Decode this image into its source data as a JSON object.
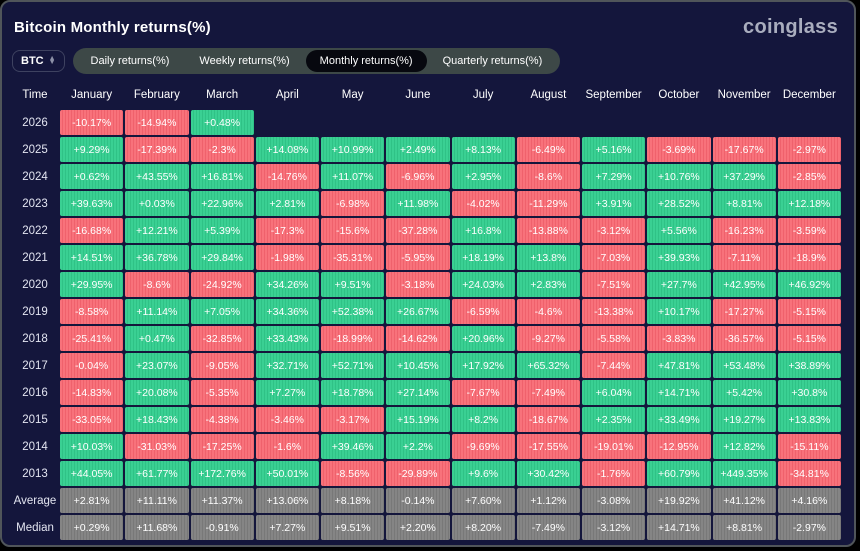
{
  "header": {
    "title": "Bitcoin Monthly returns(%)",
    "brand": "coinglass"
  },
  "controls": {
    "coin_selector": {
      "value": "BTC",
      "icon": "up-down-arrows"
    },
    "tabs": [
      {
        "label": "Daily returns(%)",
        "active": false
      },
      {
        "label": "Weekly returns(%)",
        "active": false
      },
      {
        "label": "Monthly returns(%)",
        "active": true
      },
      {
        "label": "Quarterly returns(%)",
        "active": false
      }
    ]
  },
  "chart_data": {
    "type": "heatmap",
    "title": "Bitcoin Monthly returns(%)",
    "corner_label": "Time",
    "columns": [
      "January",
      "February",
      "March",
      "April",
      "May",
      "June",
      "July",
      "August",
      "September",
      "October",
      "November",
      "December"
    ],
    "rows": [
      {
        "label": "2026",
        "kind": "year",
        "values": [
          "-10.17%",
          "-14.94%",
          "+0.48%",
          null,
          null,
          null,
          null,
          null,
          null,
          null,
          null,
          null
        ]
      },
      {
        "label": "2025",
        "kind": "year",
        "values": [
          "+9.29%",
          "-17.39%",
          "-2.3%",
          "+14.08%",
          "+10.99%",
          "+2.49%",
          "+8.13%",
          "-6.49%",
          "+5.16%",
          "-3.69%",
          "-17.67%",
          "-2.97%"
        ]
      },
      {
        "label": "2024",
        "kind": "year",
        "values": [
          "+0.62%",
          "+43.55%",
          "+16.81%",
          "-14.76%",
          "+11.07%",
          "-6.96%",
          "+2.95%",
          "-8.6%",
          "+7.29%",
          "+10.76%",
          "+37.29%",
          "-2.85%"
        ]
      },
      {
        "label": "2023",
        "kind": "year",
        "values": [
          "+39.63%",
          "+0.03%",
          "+22.96%",
          "+2.81%",
          "-6.98%",
          "+11.98%",
          "-4.02%",
          "-11.29%",
          "+3.91%",
          "+28.52%",
          "+8.81%",
          "+12.18%"
        ]
      },
      {
        "label": "2022",
        "kind": "year",
        "values": [
          "-16.68%",
          "+12.21%",
          "+5.39%",
          "-17.3%",
          "-15.6%",
          "-37.28%",
          "+16.8%",
          "-13.88%",
          "-3.12%",
          "+5.56%",
          "-16.23%",
          "-3.59%"
        ]
      },
      {
        "label": "2021",
        "kind": "year",
        "values": [
          "+14.51%",
          "+36.78%",
          "+29.84%",
          "-1.98%",
          "-35.31%",
          "-5.95%",
          "+18.19%",
          "+13.8%",
          "-7.03%",
          "+39.93%",
          "-7.11%",
          "-18.9%"
        ]
      },
      {
        "label": "2020",
        "kind": "year",
        "values": [
          "+29.95%",
          "-8.6%",
          "-24.92%",
          "+34.26%",
          "+9.51%",
          "-3.18%",
          "+24.03%",
          "+2.83%",
          "-7.51%",
          "+27.7%",
          "+42.95%",
          "+46.92%"
        ]
      },
      {
        "label": "2019",
        "kind": "year",
        "values": [
          "-8.58%",
          "+11.14%",
          "+7.05%",
          "+34.36%",
          "+52.38%",
          "+26.67%",
          "-6.59%",
          "-4.6%",
          "-13.38%",
          "+10.17%",
          "-17.27%",
          "-5.15%"
        ]
      },
      {
        "label": "2018",
        "kind": "year",
        "values": [
          "-25.41%",
          "+0.47%",
          "-32.85%",
          "+33.43%",
          "-18.99%",
          "-14.62%",
          "+20.96%",
          "-9.27%",
          "-5.58%",
          "-3.83%",
          "-36.57%",
          "-5.15%"
        ]
      },
      {
        "label": "2017",
        "kind": "year",
        "values": [
          "-0.04%",
          "+23.07%",
          "-9.05%",
          "+32.71%",
          "+52.71%",
          "+10.45%",
          "+17.92%",
          "+65.32%",
          "-7.44%",
          "+47.81%",
          "+53.48%",
          "+38.89%"
        ]
      },
      {
        "label": "2016",
        "kind": "year",
        "values": [
          "-14.83%",
          "+20.08%",
          "-5.35%",
          "+7.27%",
          "+18.78%",
          "+27.14%",
          "-7.67%",
          "-7.49%",
          "+6.04%",
          "+14.71%",
          "+5.42%",
          "+30.8%"
        ]
      },
      {
        "label": "2015",
        "kind": "year",
        "values": [
          "-33.05%",
          "+18.43%",
          "-4.38%",
          "-3.46%",
          "-3.17%",
          "+15.19%",
          "+8.2%",
          "-18.67%",
          "+2.35%",
          "+33.49%",
          "+19.27%",
          "+13.83%"
        ]
      },
      {
        "label": "2014",
        "kind": "year",
        "values": [
          "+10.03%",
          "-31.03%",
          "-17.25%",
          "-1.6%",
          "+39.46%",
          "+2.2%",
          "-9.69%",
          "-17.55%",
          "-19.01%",
          "-12.95%",
          "+12.82%",
          "-15.11%"
        ]
      },
      {
        "label": "2013",
        "kind": "year",
        "values": [
          "+44.05%",
          "+61.77%",
          "+172.76%",
          "+50.01%",
          "-8.56%",
          "-29.89%",
          "+9.6%",
          "+30.42%",
          "-1.76%",
          "+60.79%",
          "+449.35%",
          "-34.81%"
        ]
      },
      {
        "label": "Average",
        "kind": "summary",
        "values": [
          "+2.81%",
          "+11.11%",
          "+11.37%",
          "+13.06%",
          "+8.18%",
          "-0.14%",
          "+7.60%",
          "+1.12%",
          "-3.08%",
          "+19.92%",
          "+41.12%",
          "+4.16%"
        ]
      },
      {
        "label": "Median",
        "kind": "summary",
        "values": [
          "+0.29%",
          "+11.68%",
          "-0.91%",
          "+7.27%",
          "+9.51%",
          "+2.20%",
          "+8.20%",
          "-7.49%",
          "-3.12%",
          "+14.71%",
          "+8.81%",
          "-2.97%"
        ]
      }
    ],
    "legend_position": "none",
    "grid": false,
    "colors": {
      "positive": "#3ad093",
      "negative": "#f8727b",
      "summary": "#828282",
      "background": "#14163c",
      "active_tab": "#07080f",
      "tab_group": "#3d4847"
    }
  }
}
